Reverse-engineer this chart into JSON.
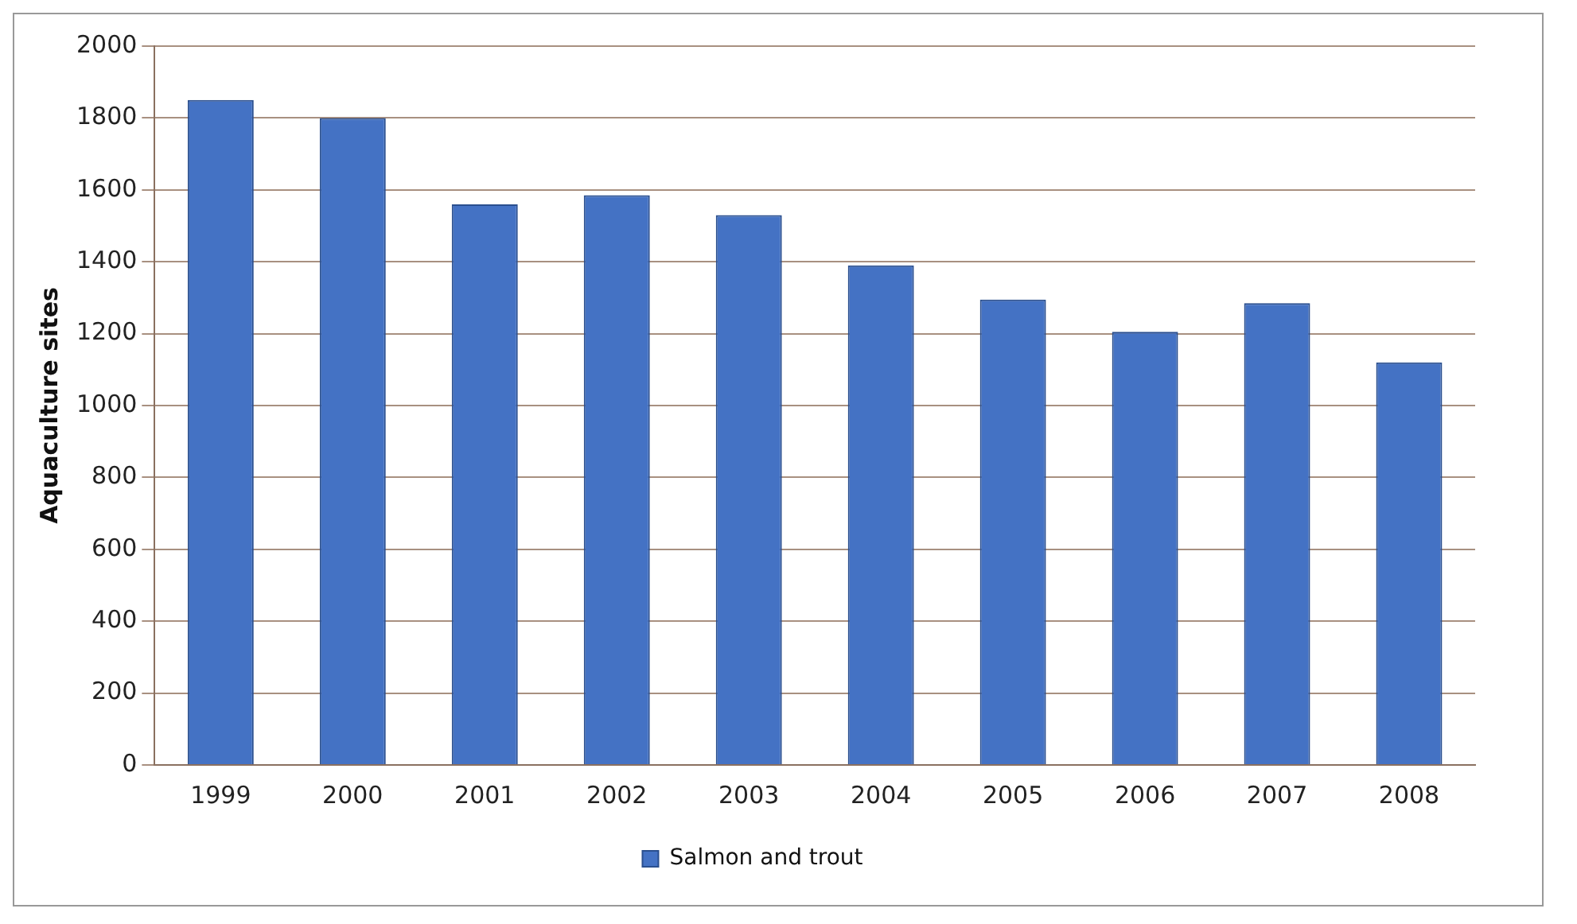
{
  "chart_data": {
    "type": "bar",
    "ylabel": "Aquaculture sites",
    "categories": [
      "1999",
      "2000",
      "2001",
      "2002",
      "2003",
      "2004",
      "2005",
      "2006",
      "2007",
      "2008"
    ],
    "series": [
      {
        "name": "Salmon and trout",
        "color": "#4472c4",
        "values": [
          1850,
          1800,
          1560,
          1585,
          1530,
          1390,
          1295,
          1205,
          1285,
          1120
        ]
      }
    ],
    "ylim": [
      0,
      2000
    ],
    "yticks": [
      0,
      200,
      400,
      600,
      800,
      1000,
      1200,
      1400,
      1600,
      1800,
      2000
    ],
    "grid": "y",
    "legend": "bottom"
  }
}
